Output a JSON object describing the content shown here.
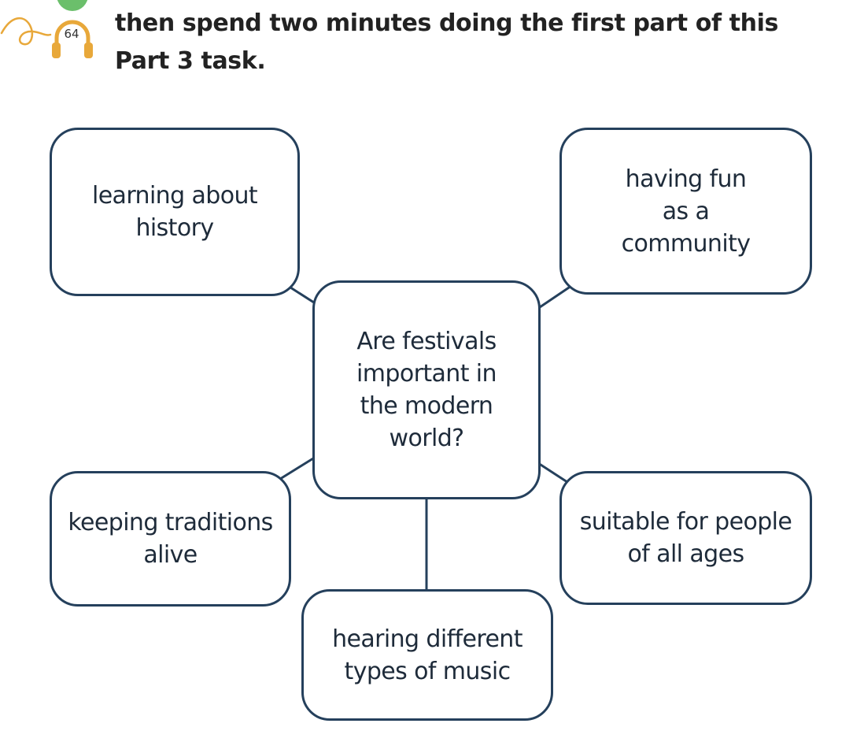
{
  "header": {
    "track_number": "64",
    "instruction": "then spend two minutes doing the first part of this Part 3 task."
  },
  "icon": {
    "name": "headphones-icon",
    "color": "#e8a83a",
    "badge_color": "#6bbf6b"
  },
  "diagram": {
    "center": "Are festivals important in the modern world?",
    "prompts": [
      "learning about history",
      "having fun as a community",
      "keeping traditions alive",
      "suitable for people of all ages",
      "hearing different types of music"
    ]
  },
  "colors": {
    "box_border": "#25405c",
    "connector": "#25405c"
  }
}
